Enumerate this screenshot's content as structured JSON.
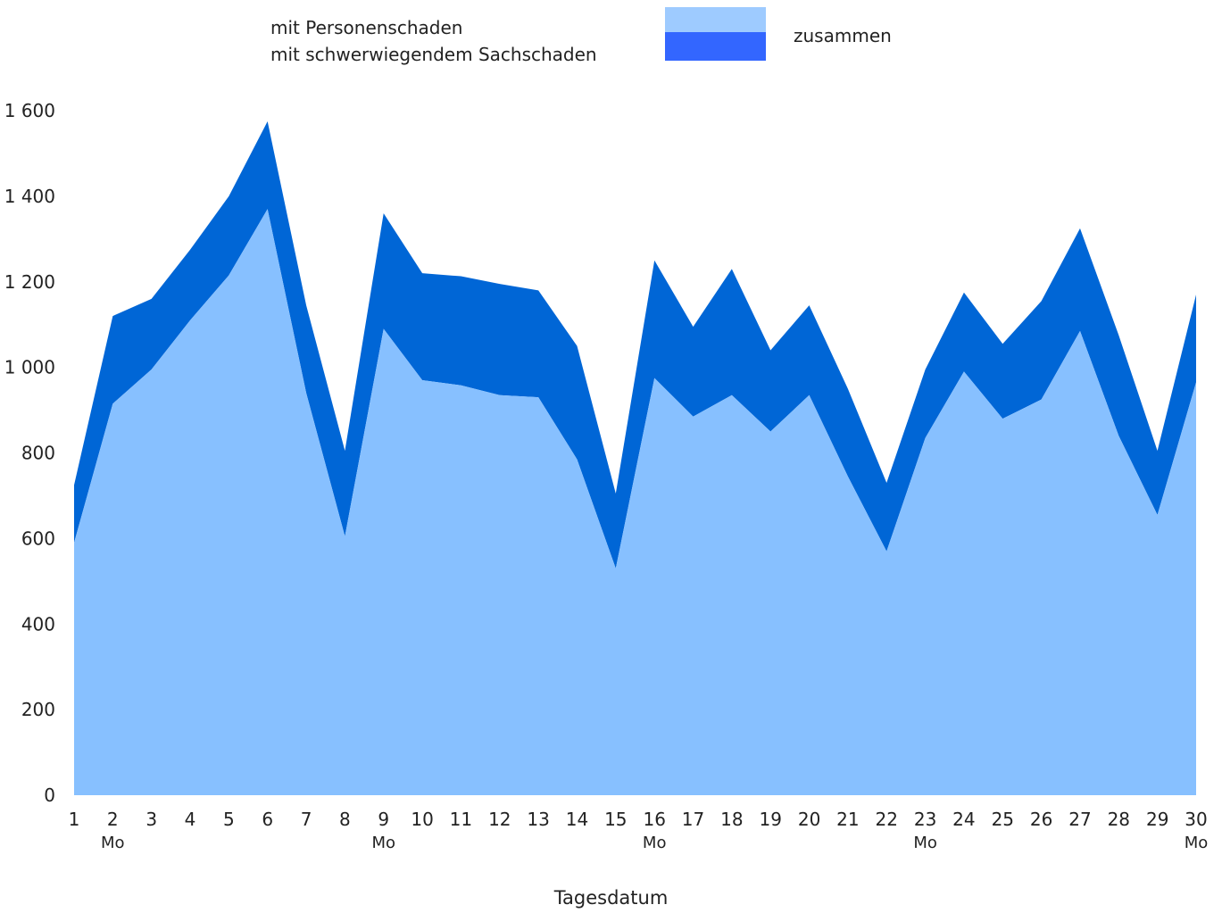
{
  "chart_data": {
    "type": "area",
    "stacked": true,
    "x": [
      "1",
      "2",
      "3",
      "4",
      "5",
      "6",
      "7",
      "8",
      "9",
      "10",
      "11",
      "12",
      "13",
      "14",
      "15",
      "16",
      "17",
      "18",
      "19",
      "20",
      "21",
      "22",
      "23",
      "24",
      "25",
      "26",
      "27",
      "28",
      "29",
      "30"
    ],
    "weekday_labels": [
      "",
      "Mo",
      "",
      "",
      "",
      "",
      "",
      "",
      "Mo",
      "",
      "",
      "",
      "",
      "",
      "",
      "Mo",
      "",
      "",
      "",
      "",
      "",
      "",
      "Mo",
      "",
      "",
      "",
      "",
      "",
      "",
      "Mo"
    ],
    "series": [
      {
        "name": "mit Personenschaden",
        "values": [
          590,
          915,
          995,
          1110,
          1215,
          1370,
          940,
          605,
          1090,
          970,
          958,
          935,
          930,
          785,
          530,
          975,
          885,
          935,
          850,
          935,
          745,
          570,
          835,
          990,
          880,
          925,
          1085,
          840,
          655,
          965
        ]
      },
      {
        "name": "mit schwerwiegendem Sachschaden",
        "values": [
          135,
          205,
          165,
          165,
          185,
          205,
          205,
          200,
          270,
          250,
          255,
          260,
          250,
          265,
          175,
          275,
          210,
          295,
          190,
          210,
          205,
          160,
          160,
          185,
          175,
          230,
          240,
          235,
          150,
          205
        ]
      }
    ],
    "total_label": "zusammen",
    "yticks": [
      "0",
      "200",
      "400",
      "600",
      "800",
      "1 000",
      "1 200",
      "1 400",
      "1 600"
    ],
    "ylim": [
      0,
      1600
    ],
    "xlabel": "Tagesdatum",
    "ylabel": "",
    "colors": {
      "lower": "#87c0ff",
      "upper": "#0066d6",
      "legend_upper": "#9ecbff",
      "legend_lower": "#3366ff"
    },
    "grid": false,
    "legend_position": "top"
  }
}
